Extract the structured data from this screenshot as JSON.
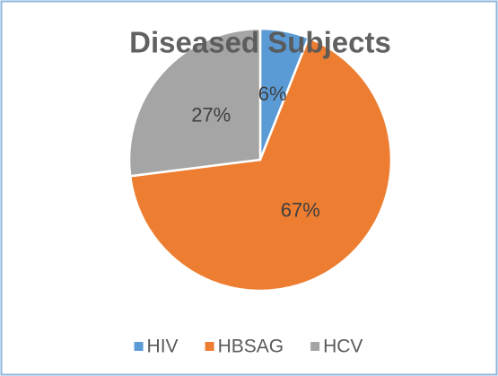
{
  "chart_data": {
    "type": "pie",
    "title": "Diseased Subjects",
    "categories": [
      "HIV",
      "HBSAG",
      "HCV"
    ],
    "values": [
      6,
      67,
      27
    ],
    "value_labels": [
      "6%",
      "67%",
      "27%"
    ],
    "colors": [
      "#5b9bd5",
      "#ed7d31",
      "#a5a5a5"
    ],
    "legend": "bottom"
  }
}
